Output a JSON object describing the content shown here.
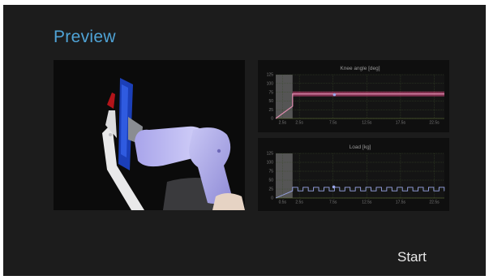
{
  "page": {
    "title": "Preview",
    "start_label": "Start"
  },
  "colors": {
    "background": "#1c1c1c",
    "title": "#4fa3d6",
    "knee_line": "#d2457e",
    "load_line": "#9aa6e8",
    "marker": "#9aa6e8"
  },
  "preview": {
    "content": "3d-knee-device-render"
  },
  "chart_data": [
    {
      "type": "line",
      "title": "Knee angle [deg]",
      "x_ticks": [
        "2.5s",
        "2.5s",
        "7.5s",
        "12.5s",
        "17.5s",
        "22.5s"
      ],
      "y_ticks": [
        0,
        25,
        50,
        75,
        100,
        125
      ],
      "ylim": [
        0,
        125
      ],
      "xlim": [
        0,
        25
      ],
      "shaded_region": [
        0,
        2.5
      ],
      "grid": true,
      "series": [
        {
          "x": [
            0,
            2.5,
            2.5,
            25
          ],
          "y": [
            0,
            35,
            70,
            70
          ],
          "band": [
            63,
            77
          ]
        }
      ],
      "marker": {
        "x": 8.7,
        "y": 68
      }
    },
    {
      "type": "line",
      "title": "Load [kg]",
      "x_ticks": [
        "0.5s",
        "2.5s",
        "7.5s",
        "12.5s",
        "17.5s",
        "22.5s"
      ],
      "y_ticks": [
        0,
        25,
        50,
        75,
        100,
        125
      ],
      "ylim": [
        0,
        125
      ],
      "xlim": [
        0,
        25
      ],
      "shaded_region": [
        0,
        2.5
      ],
      "grid": true,
      "series": [
        {
          "square_wave": {
            "start": 2.5,
            "end": 25,
            "low": 20,
            "high": 30,
            "period": 1.55
          },
          "ramp": {
            "x": [
              0,
              2.5
            ],
            "y": [
              0,
              20
            ]
          }
        }
      ],
      "marker": {
        "x": 8.6,
        "y": 31
      }
    }
  ]
}
